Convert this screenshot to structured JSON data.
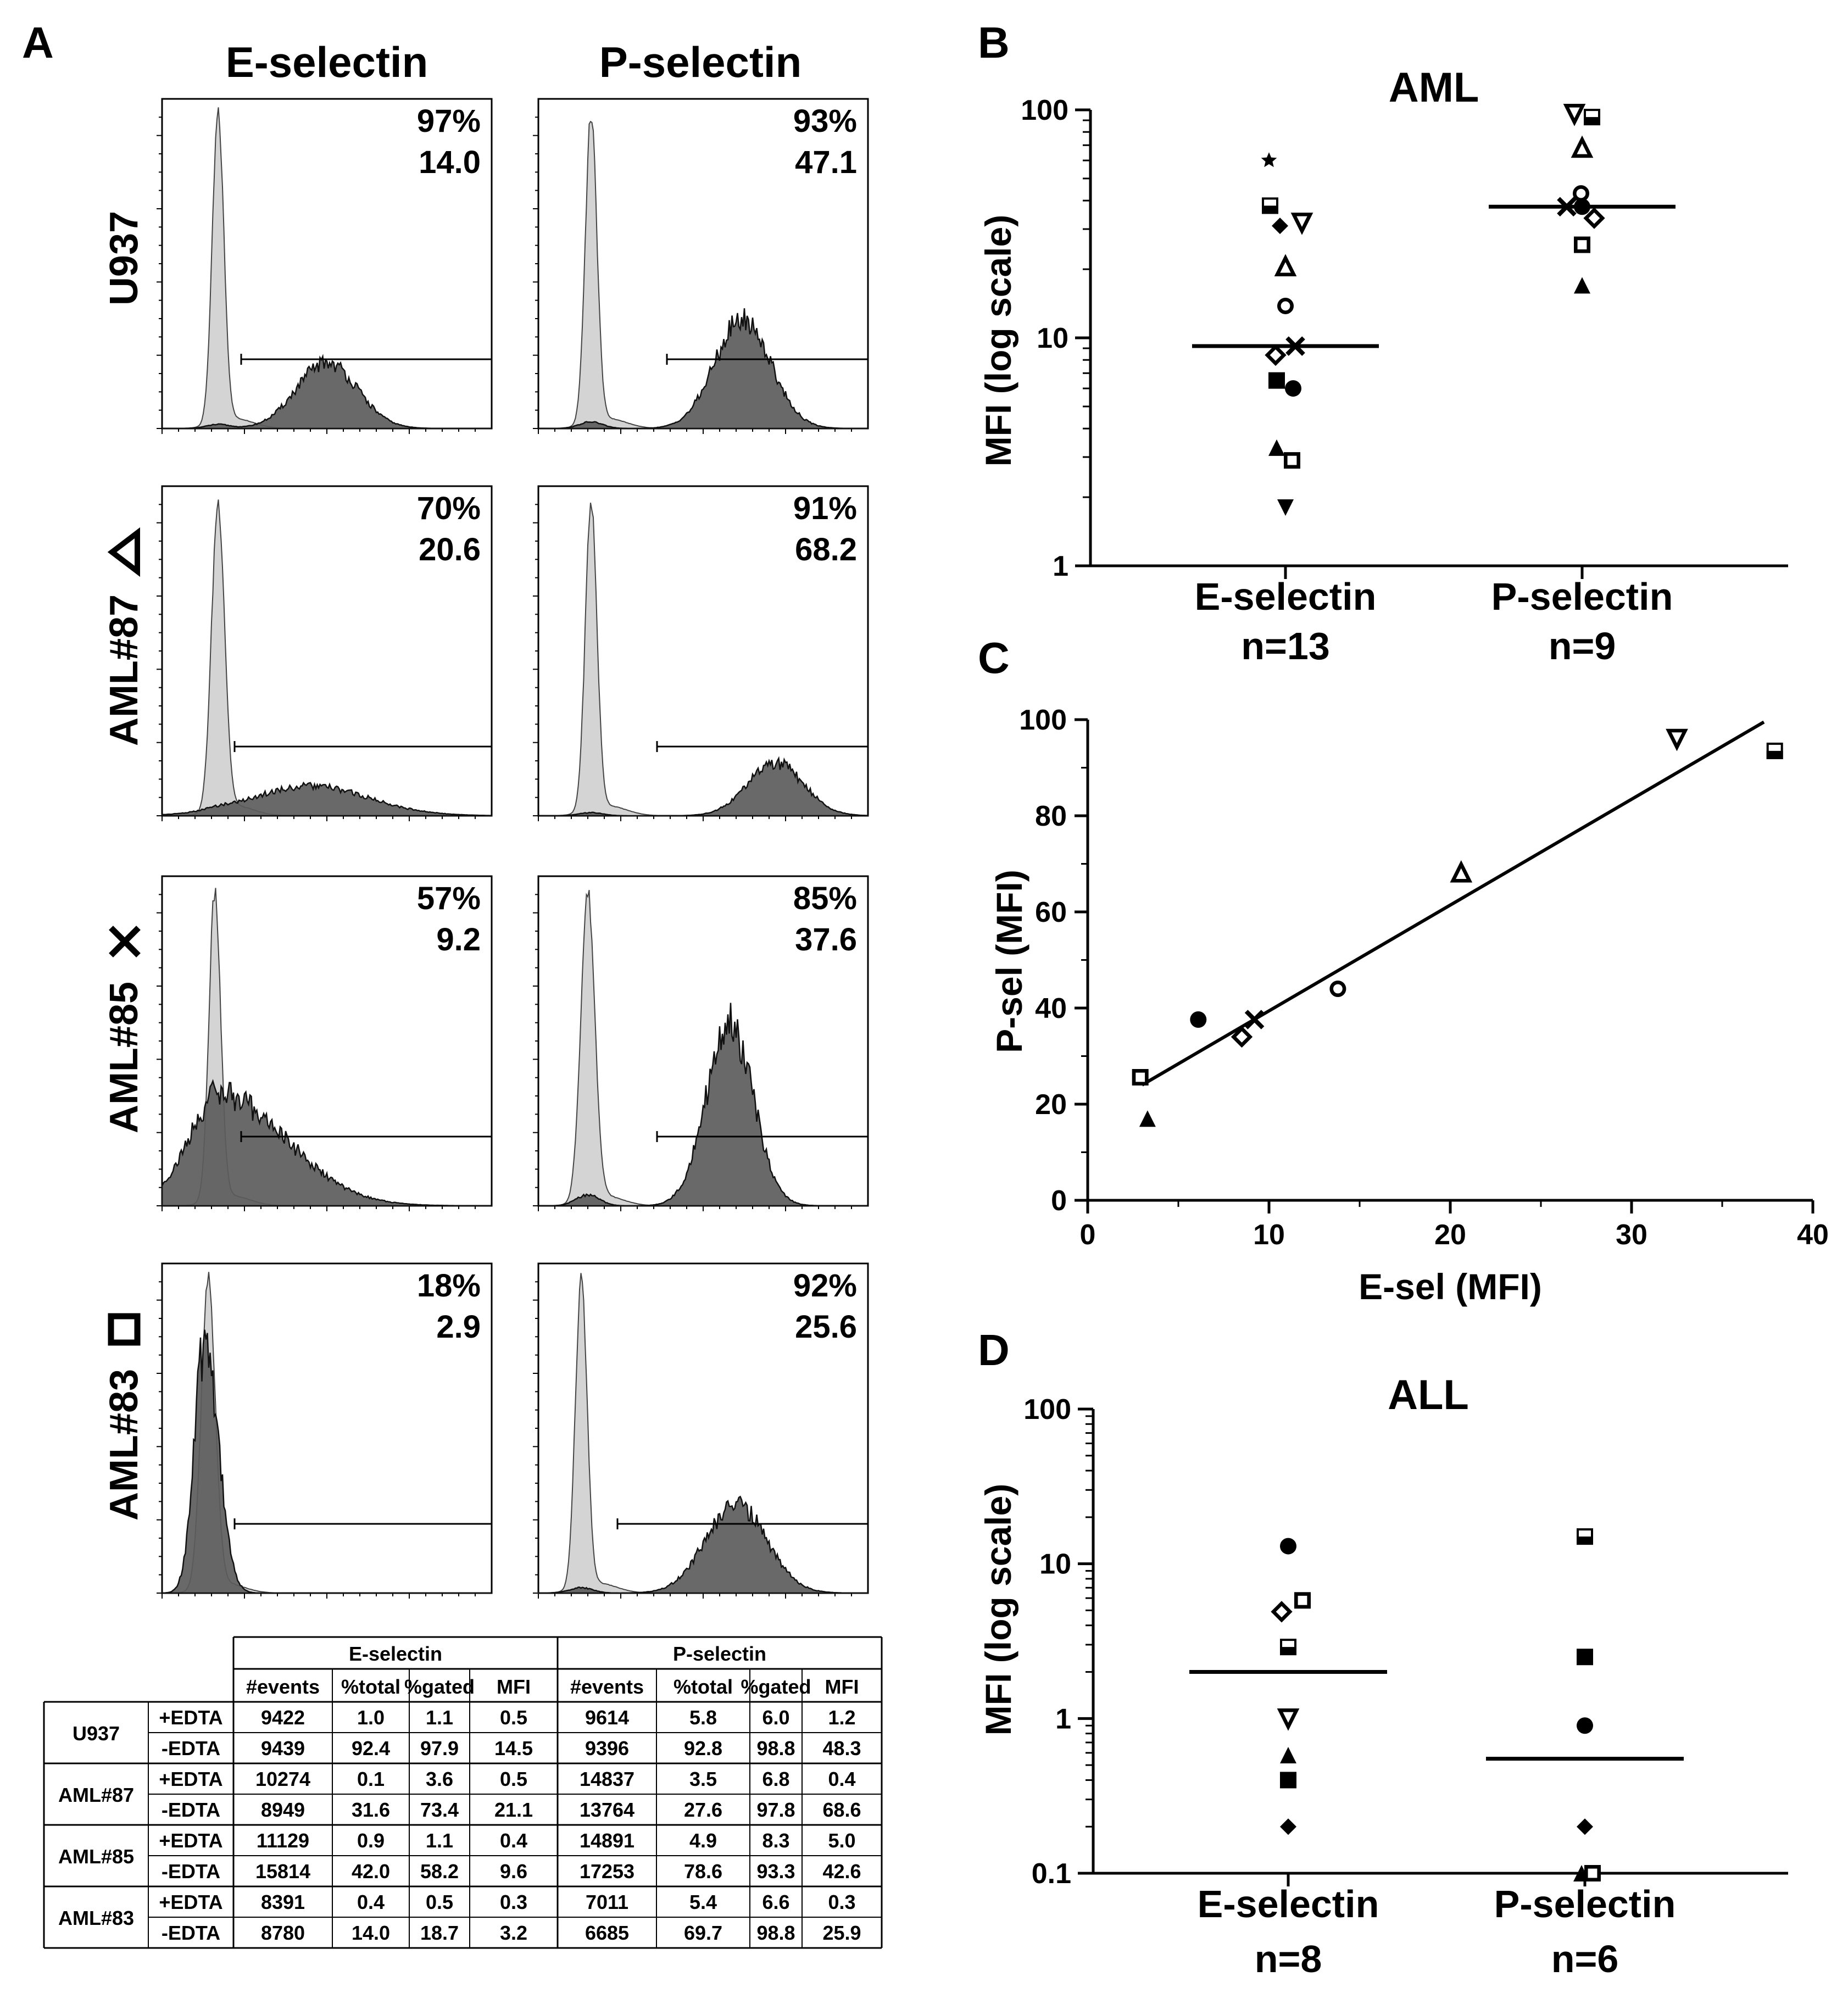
{
  "panels": {
    "a": "A",
    "b": "B",
    "c": "C",
    "d": "D"
  },
  "panel_a": {
    "columns": [
      "E-selectin",
      "P-selectin"
    ],
    "rows": [
      {
        "label": "U937",
        "symbol": "",
        "e_pct": "97%",
        "e_mfi": "14.0",
        "p_pct": "93%",
        "p_mfi": "47.1"
      },
      {
        "label": "AML#87",
        "symbol": "triangle-open",
        "e_pct": "70%",
        "e_mfi": "20.6",
        "p_pct": "91%",
        "p_mfi": "68.2"
      },
      {
        "label": "AML#85",
        "symbol": "cross",
        "e_pct": "57%",
        "e_mfi": "9.2",
        "p_pct": "85%",
        "p_mfi": "37.6"
      },
      {
        "label": "AML#83",
        "symbol": "square-open",
        "e_pct": "18%",
        "e_mfi": "2.9",
        "p_pct": "92%",
        "p_mfi": "25.6"
      }
    ]
  },
  "table": {
    "group_headers": [
      "E-selectin",
      "P-selectin"
    ],
    "col_headers": [
      "#events",
      "%total",
      "%gated",
      "MFI",
      "#events",
      "%total",
      "%gated",
      "MFI"
    ],
    "rows": [
      {
        "sample": "U937",
        "cond": "+EDTA",
        "cells": [
          "9422",
          "1.0",
          "1.1",
          "0.5",
          "9614",
          "5.8",
          "6.0",
          "1.2"
        ]
      },
      {
        "sample": "U937",
        "cond": "-EDTA",
        "cells": [
          "9439",
          "92.4",
          "97.9",
          "14.5",
          "9396",
          "92.8",
          "98.8",
          "48.3"
        ]
      },
      {
        "sample": "AML#87",
        "cond": "+EDTA",
        "cells": [
          "10274",
          "0.1",
          "3.6",
          "0.5",
          "14837",
          "3.5",
          "6.8",
          "0.4"
        ]
      },
      {
        "sample": "AML#87",
        "cond": "-EDTA",
        "cells": [
          "8949",
          "31.6",
          "73.4",
          "21.1",
          "13764",
          "27.6",
          "97.8",
          "68.6"
        ]
      },
      {
        "sample": "AML#85",
        "cond": "+EDTA",
        "cells": [
          "11129",
          "0.9",
          "1.1",
          "0.4",
          "14891",
          "4.9",
          "8.3",
          "5.0"
        ]
      },
      {
        "sample": "AML#85",
        "cond": "-EDTA",
        "cells": [
          "15814",
          "42.0",
          "58.2",
          "9.6",
          "17253",
          "78.6",
          "93.3",
          "42.6"
        ]
      },
      {
        "sample": "AML#83",
        "cond": "+EDTA",
        "cells": [
          "8391",
          "0.4",
          "0.5",
          "0.3",
          "7011",
          "5.4",
          "6.6",
          "0.3"
        ]
      },
      {
        "sample": "AML#83",
        "cond": "-EDTA",
        "cells": [
          "8780",
          "14.0",
          "18.7",
          "3.2",
          "6685",
          "69.7",
          "98.8",
          "25.9"
        ]
      }
    ]
  },
  "chart_data": [
    {
      "id": "B",
      "type": "scatter",
      "scale": "log",
      "title": "AML",
      "ylabel": "MFI (log scale)",
      "ylim": [
        1,
        100
      ],
      "yticks": [
        "1",
        "10",
        "100"
      ],
      "categories": [
        "E-selectin",
        "P-selectin"
      ],
      "category_n": [
        "n=13",
        "n=9"
      ],
      "medians": [
        9.2,
        37.6
      ],
      "series": [
        {
          "name": "E-selectin",
          "points": [
            {
              "symbol": "star",
              "value": 60
            },
            {
              "symbol": "half-square",
              "value": 38
            },
            {
              "symbol": "diamond-filled",
              "value": 31
            },
            {
              "symbol": "triangle-down-open",
              "value": 32
            },
            {
              "symbol": "triangle-open",
              "value": 20.6
            },
            {
              "symbol": "circle-open",
              "value": 13.8
            },
            {
              "symbol": "cross",
              "value": 9.2
            },
            {
              "symbol": "diamond-open",
              "value": 8.4
            },
            {
              "symbol": "square-filled",
              "value": 6.5
            },
            {
              "symbol": "circle-filled",
              "value": 6.0
            },
            {
              "symbol": "triangle-filled",
              "value": 3.3
            },
            {
              "symbol": "square-open",
              "value": 2.9
            },
            {
              "symbol": "triangle-down-filled",
              "value": 1.8
            }
          ]
        },
        {
          "name": "P-selectin",
          "points": [
            {
              "symbol": "triangle-down-open",
              "value": 96
            },
            {
              "symbol": "half-square",
              "value": 93
            },
            {
              "symbol": "triangle-open",
              "value": 68.2
            },
            {
              "symbol": "circle-open",
              "value": 43
            },
            {
              "symbol": "cross",
              "value": 37.6
            },
            {
              "symbol": "circle-filled",
              "value": 37.6
            },
            {
              "symbol": "diamond-open",
              "value": 33.5
            },
            {
              "symbol": "square-open",
              "value": 25.6
            },
            {
              "symbol": "triangle-filled",
              "value": 17
            }
          ]
        }
      ]
    },
    {
      "id": "C",
      "type": "scatter",
      "xlabel": "E-sel (MFI)",
      "ylabel": "P-sel (MFI)",
      "xlim": [
        0,
        40
      ],
      "ylim": [
        0,
        100
      ],
      "xticks": [
        "0",
        "10",
        "20",
        "30",
        "40"
      ],
      "yticks": [
        "0",
        "20",
        "40",
        "60",
        "80",
        "100"
      ],
      "points": [
        {
          "symbol": "square-open",
          "x": 2.9,
          "y": 25.6
        },
        {
          "symbol": "triangle-filled",
          "x": 3.3,
          "y": 17
        },
        {
          "symbol": "circle-filled",
          "x": 6.1,
          "y": 37.6
        },
        {
          "symbol": "diamond-open",
          "x": 8.5,
          "y": 34
        },
        {
          "symbol": "cross",
          "x": 9.2,
          "y": 37.6
        },
        {
          "symbol": "circle-open",
          "x": 13.8,
          "y": 44
        },
        {
          "symbol": "triangle-open",
          "x": 20.6,
          "y": 68.2
        },
        {
          "symbol": "triangle-down-open",
          "x": 32.5,
          "y": 96
        },
        {
          "symbol": "half-square",
          "x": 37.9,
          "y": 93.5
        }
      ],
      "fit": {
        "x1": 3,
        "y1": 24,
        "x2": 37.3,
        "y2": 99.5
      }
    },
    {
      "id": "D",
      "type": "scatter",
      "scale": "log",
      "title": "ALL",
      "ylabel": "MFI (log scale)",
      "ylim": [
        0.1,
        100
      ],
      "yticks": [
        "0.1",
        "1",
        "10",
        "100"
      ],
      "categories": [
        "E-selectin",
        "P-selectin"
      ],
      "category_n": [
        "n=8",
        "n=6"
      ],
      "medians": [
        2.0,
        0.55
      ],
      "series": [
        {
          "name": "E-selectin",
          "points": [
            {
              "symbol": "circle-filled",
              "value": 13
            },
            {
              "symbol": "square-open",
              "value": 5.8
            },
            {
              "symbol": "diamond-open",
              "value": 4.9
            },
            {
              "symbol": "half-square",
              "value": 2.9
            },
            {
              "symbol": "triangle-down-open",
              "value": 1.0
            },
            {
              "symbol": "triangle-filled",
              "value": 0.58
            },
            {
              "symbol": "square-filled",
              "value": 0.4
            },
            {
              "symbol": "diamond-filled",
              "value": 0.2
            }
          ]
        },
        {
          "name": "P-selectin",
          "points": [
            {
              "symbol": "half-square",
              "value": 15
            },
            {
              "symbol": "square-filled",
              "value": 2.5
            },
            {
              "symbol": "circle-filled",
              "value": 0.9
            },
            {
              "symbol": "diamond-filled",
              "value": 0.2
            },
            {
              "symbol": "triangle-filled",
              "value": 0.1
            },
            {
              "symbol": "square-open",
              "value": 0.1
            }
          ]
        }
      ]
    }
  ]
}
